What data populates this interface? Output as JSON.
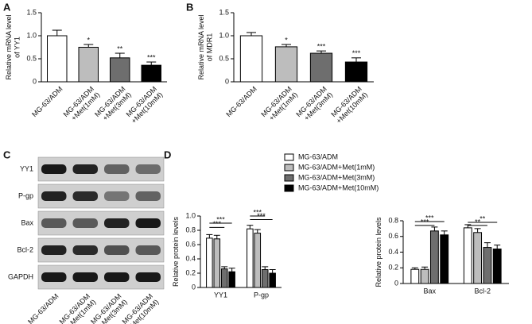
{
  "panels": [
    "A",
    "B",
    "C",
    "D"
  ],
  "chart_data": [
    {
      "type": "bar",
      "ylabel": [
        "Relative mRNA level",
        "of YY1"
      ],
      "categories": [
        [
          "MG-63/ADM"
        ],
        [
          "MG-63/ADM",
          "+Met(1mM)"
        ],
        [
          "MG-63/ADM",
          "+Met(3mM)"
        ],
        [
          "MG-63/ADM",
          "+Met(10mM)"
        ]
      ],
      "values": [
        1.0,
        0.75,
        0.52,
        0.36
      ],
      "errors": [
        0.12,
        0.06,
        0.1,
        0.07
      ],
      "value_annotations": [
        null,
        "*",
        "**",
        "***"
      ],
      "colors": [
        "#ffffff",
        "#bdbdbd",
        "#6e6e6e",
        "#000000"
      ],
      "ylim": [
        0,
        1.5
      ],
      "yticks": [
        0,
        0.5,
        {
          "value": 1,
          "label": "1.0"
        },
        1.5
      ]
    },
    {
      "type": "bar",
      "ylabel": [
        "Relative mRNA level",
        "of MDR1"
      ],
      "categories": [
        [
          "MG-63/ADM"
        ],
        [
          "MG-63/ADM",
          "+Met(1mM)"
        ],
        [
          "MG-63/ADM",
          "+Met(3mM)"
        ],
        [
          "MG-63/ADM",
          "+Met(10mM)"
        ]
      ],
      "values": [
        1.0,
        0.76,
        0.62,
        0.43
      ],
      "errors": [
        0.07,
        0.05,
        0.05,
        0.09
      ],
      "value_annotations": [
        null,
        "*",
        "***",
        "***"
      ],
      "colors": [
        "#ffffff",
        "#bdbdbd",
        "#6e6e6e",
        "#000000"
      ],
      "ylim": [
        0,
        1.5
      ],
      "yticks": [
        0,
        0.5,
        {
          "value": 1,
          "label": "1.0"
        },
        1.5
      ]
    },
    {
      "type": "grouped_bar",
      "ylabel": [
        "Relative protein levels"
      ],
      "categories": [
        "YY1",
        "P-gp"
      ],
      "series": [
        {
          "name": "MG-63/ADM",
          "color": "#ffffff",
          "values": [
            0.69,
            0.82
          ],
          "errors": [
            0.05,
            0.05
          ]
        },
        {
          "name": "MG-63/ADM+Met(1mM)",
          "color": "#bdbdbd",
          "values": [
            0.68,
            0.76
          ],
          "errors": [
            0.05,
            0.05
          ]
        },
        {
          "name": "MG-63/ADM+Met(3mM)",
          "color": "#6e6e6e",
          "values": [
            0.26,
            0.25
          ],
          "errors": [
            0.03,
            0.04
          ]
        },
        {
          "name": "MG-63/ADM+Met(10mM)",
          "color": "#000000",
          "values": [
            0.22,
            0.2
          ],
          "errors": [
            0.05,
            0.05
          ]
        }
      ],
      "brackets": [
        "***",
        "***",
        "***",
        "***"
      ],
      "ylim": [
        0,
        1
      ],
      "yticks": [
        0,
        0.2,
        0.4,
        0.6,
        0.8,
        {
          "value": 1,
          "label": "1.0"
        }
      ]
    },
    {
      "type": "grouped_bar",
      "ylabel": [
        "Relative protein levels"
      ],
      "categories": [
        "Bax",
        "Bcl-2"
      ],
      "series": [
        {
          "color": "#ffffff",
          "values": [
            0.18,
            0.71
          ],
          "errors": [
            0.02,
            0.04
          ]
        },
        {
          "color": "#bdbdbd",
          "values": [
            0.18,
            0.65
          ],
          "errors": [
            0.03,
            0.05
          ]
        },
        {
          "color": "#6e6e6e",
          "values": [
            0.67,
            0.46
          ],
          "errors": [
            0.05,
            0.06
          ]
        },
        {
          "color": "#000000",
          "values": [
            0.62,
            0.44
          ],
          "errors": [
            0.05,
            0.05
          ]
        }
      ],
      "brackets": [
        "***",
        "***",
        "**",
        "**"
      ],
      "ylim": [
        0,
        0.8
      ],
      "yticks": [
        0,
        0.2,
        0.4,
        0.6,
        0.8
      ]
    }
  ],
  "blot": {
    "proteins": [
      "YY1",
      "P-gp",
      "Bax",
      "Bcl-2",
      "GAPDH"
    ],
    "lanes": [
      [
        "MG-63/ADM"
      ],
      [
        "MG-63/ADM",
        "+Met(1mM)"
      ],
      [
        "MG-63/ADM",
        "+Met(3mM)"
      ],
      [
        "MG-63/ADM",
        "+Met(10mM)"
      ]
    ]
  }
}
